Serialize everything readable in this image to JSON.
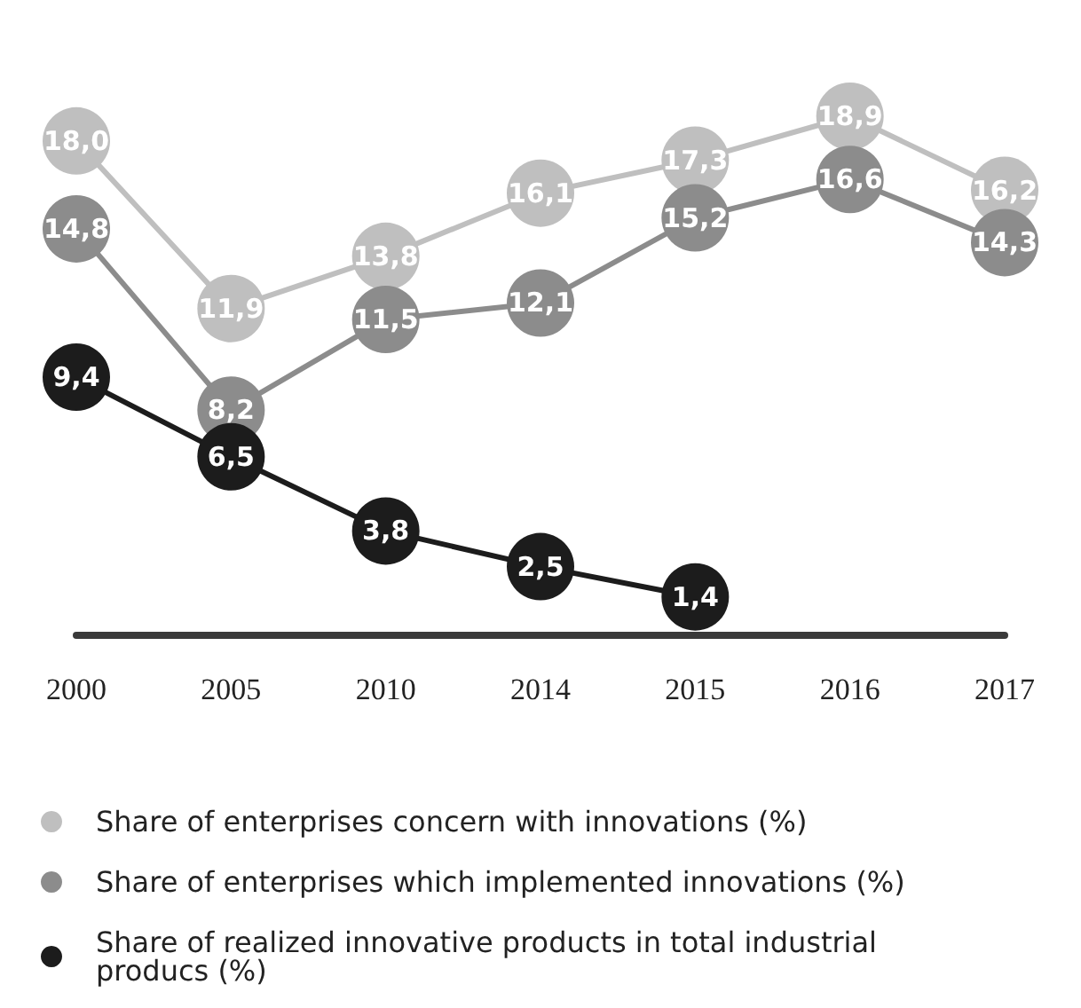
{
  "chart_data": {
    "type": "line",
    "categories": [
      "2000",
      "2005",
      "2010",
      "2014",
      "2015",
      "2016",
      "2017"
    ],
    "series": [
      {
        "name": "Share of enterprises concern with innovations (%)",
        "color": "#bfbfbf",
        "values": [
          18.0,
          11.9,
          13.8,
          16.1,
          17.3,
          18.9,
          16.2
        ],
        "value_labels": [
          "18,0",
          "11,9",
          "13,8",
          "16,1",
          "17,3",
          "18,9",
          "16,2"
        ]
      },
      {
        "name": "Share of enterprises which implemented innovations (%)",
        "color": "#8c8c8c",
        "values": [
          14.8,
          8.2,
          11.5,
          12.1,
          15.2,
          16.6,
          14.3
        ],
        "value_labels": [
          "14,8",
          "8,2",
          "11,5",
          "12,1",
          "15,2",
          "16,6",
          "14,3"
        ]
      },
      {
        "name": "Share of realized innovative products in total industrial producs (%)",
        "color": "#1c1c1c",
        "values": [
          9.4,
          6.5,
          3.8,
          2.5,
          1.4,
          null,
          null
        ],
        "value_labels": [
          "9,4",
          "6,5",
          "3,8",
          "2,5",
          "1,4",
          null,
          null
        ]
      }
    ],
    "marker": "circle",
    "line_style": "solid",
    "legend": "bottom",
    "grid": false
  }
}
